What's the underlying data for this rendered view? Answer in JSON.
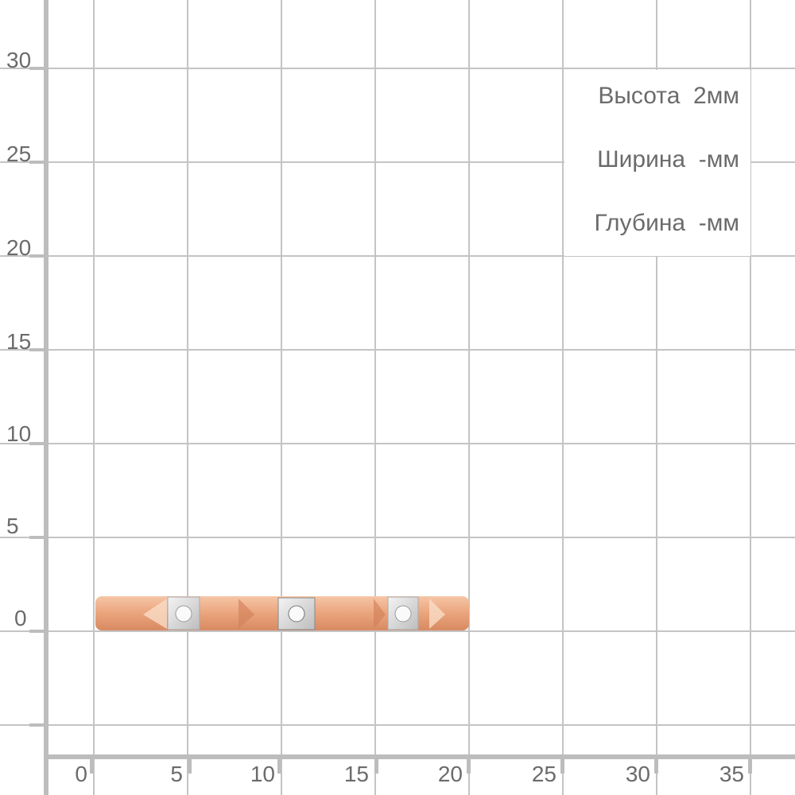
{
  "y_axis": {
    "ticks": [
      "30",
      "25",
      "20",
      "15",
      "10",
      "5",
      "0"
    ]
  },
  "x_axis": {
    "ticks": [
      "0",
      "5",
      "10",
      "15",
      "20",
      "25",
      "30",
      "35"
    ]
  },
  "specs": {
    "height": "Высота  2мм",
    "width": "Ширина  -мм",
    "depth": "Глубина  -мм"
  },
  "colors": {
    "grid": "#c4c4c4",
    "axis": "#bdbdbd",
    "text": "#6b6b6b",
    "rose_gold": "#e8a07a",
    "white_gold": "#d8d8d8"
  },
  "product": {
    "type": "ring",
    "stones": 3
  }
}
